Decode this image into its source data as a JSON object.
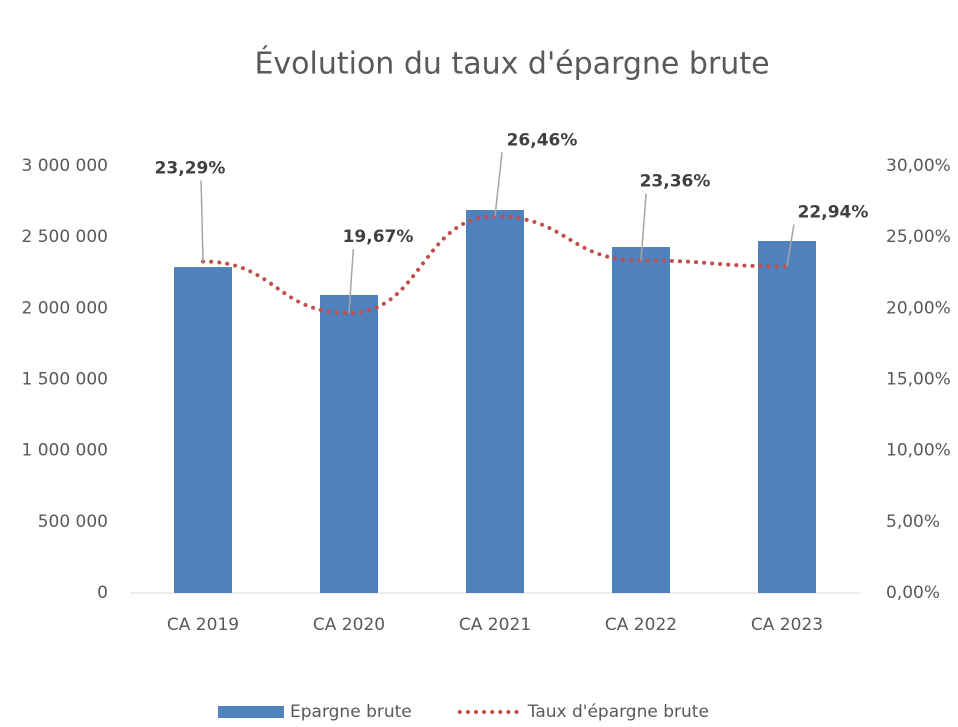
{
  "chart_data": {
    "type": "bar-line",
    "title": "Évolution du taux d'épargne brute",
    "categories": [
      "CA 2019",
      "CA 2020",
      "CA 2021",
      "CA 2022",
      "CA 2023"
    ],
    "series": [
      {
        "name": "Epargne brute",
        "type": "bar",
        "color": "#4f81bd",
        "values": [
          2290000,
          2094000,
          2691000,
          2431000,
          2473000
        ]
      },
      {
        "name": "Taux d'épargne brute",
        "type": "line",
        "axis": "y2",
        "color": "#c0504d",
        "dotted": true,
        "values": [
          23.29,
          19.67,
          26.46,
          23.36,
          22.94
        ],
        "value_labels": [
          "23,29%",
          "19,67%",
          "26,46%",
          "23,36%",
          "22,94%"
        ]
      }
    ],
    "ylim": [
      0,
      3000000
    ],
    "yticks": [
      0,
      {
        "value": 500000,
        "label": "500 000"
      },
      {
        "value": 1000000,
        "label": "1 000 000"
      },
      {
        "value": 1500000,
        "label": "1 500 000"
      },
      {
        "value": 2000000,
        "label": "2 000 000"
      },
      {
        "value": 2500000,
        "label": "2 500 000"
      },
      {
        "value": 3000000,
        "label": "3 000 000"
      }
    ],
    "y2lim": [
      0,
      30
    ],
    "y2ticks": [
      {
        "value": 0,
        "label": "0,00%"
      },
      {
        "value": 5,
        "label": "5,00%"
      },
      {
        "value": 10,
        "label": "10,00%"
      },
      {
        "value": 15,
        "label": "15,00%"
      },
      {
        "value": 20,
        "label": "20,00%"
      },
      {
        "value": 25,
        "label": "25,00%"
      },
      {
        "value": 30,
        "label": "30,00%"
      }
    ],
    "legend": "bottom"
  }
}
